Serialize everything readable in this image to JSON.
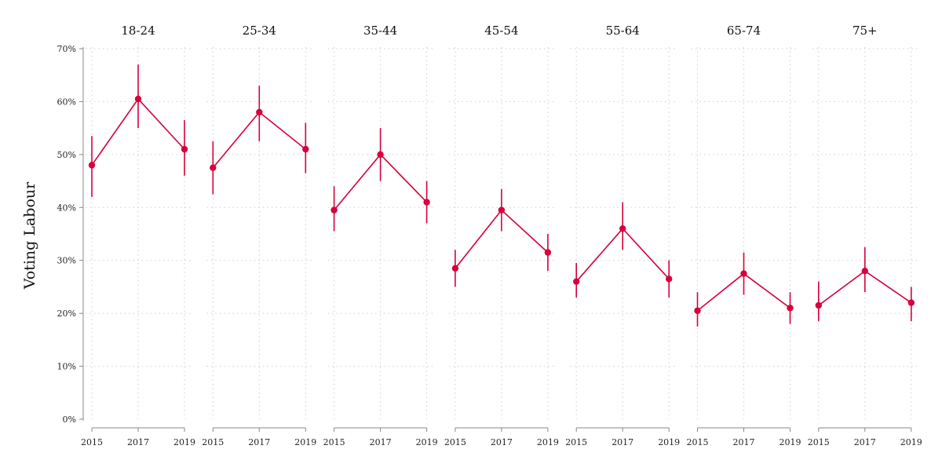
{
  "chart_data": {
    "type": "line",
    "ylabel": "Voting Labour",
    "ylim": [
      0,
      70
    ],
    "y_ticks": [
      "0%",
      "10%",
      "20%",
      "30%",
      "40%",
      "50%",
      "60%",
      "70%"
    ],
    "y_tick_values": [
      0,
      10,
      20,
      30,
      40,
      50,
      60,
      70
    ],
    "x": [
      "2015",
      "2017",
      "2019"
    ],
    "grid": true,
    "color": "#d6003c",
    "panels": [
      {
        "name": "18-24",
        "values": [
          48.0,
          60.5,
          51.0
        ],
        "ci_low": [
          42.0,
          55.0,
          46.0
        ],
        "ci_high": [
          53.5,
          67.0,
          56.5
        ]
      },
      {
        "name": "25-34",
        "values": [
          47.5,
          58.0,
          51.0
        ],
        "ci_low": [
          42.5,
          52.5,
          46.5
        ],
        "ci_high": [
          52.5,
          63.0,
          56.0
        ]
      },
      {
        "name": "35-44",
        "values": [
          39.5,
          50.0,
          41.0
        ],
        "ci_low": [
          35.5,
          45.0,
          37.0
        ],
        "ci_high": [
          44.0,
          55.0,
          45.0
        ]
      },
      {
        "name": "45-54",
        "values": [
          28.5,
          39.5,
          31.5
        ],
        "ci_low": [
          25.0,
          35.5,
          28.0
        ],
        "ci_high": [
          32.0,
          43.5,
          35.0
        ]
      },
      {
        "name": "55-64",
        "values": [
          26.0,
          36.0,
          26.5
        ],
        "ci_low": [
          23.0,
          32.0,
          23.0
        ],
        "ci_high": [
          29.5,
          41.0,
          30.0
        ]
      },
      {
        "name": "65-74",
        "values": [
          20.5,
          27.5,
          21.0
        ],
        "ci_low": [
          17.5,
          23.5,
          18.0
        ],
        "ci_high": [
          24.0,
          31.5,
          24.0
        ]
      },
      {
        "name": "75+",
        "values": [
          21.5,
          28.0,
          22.0
        ],
        "ci_low": [
          18.5,
          24.0,
          18.5
        ],
        "ci_high": [
          26.0,
          32.5,
          25.0
        ]
      }
    ]
  }
}
